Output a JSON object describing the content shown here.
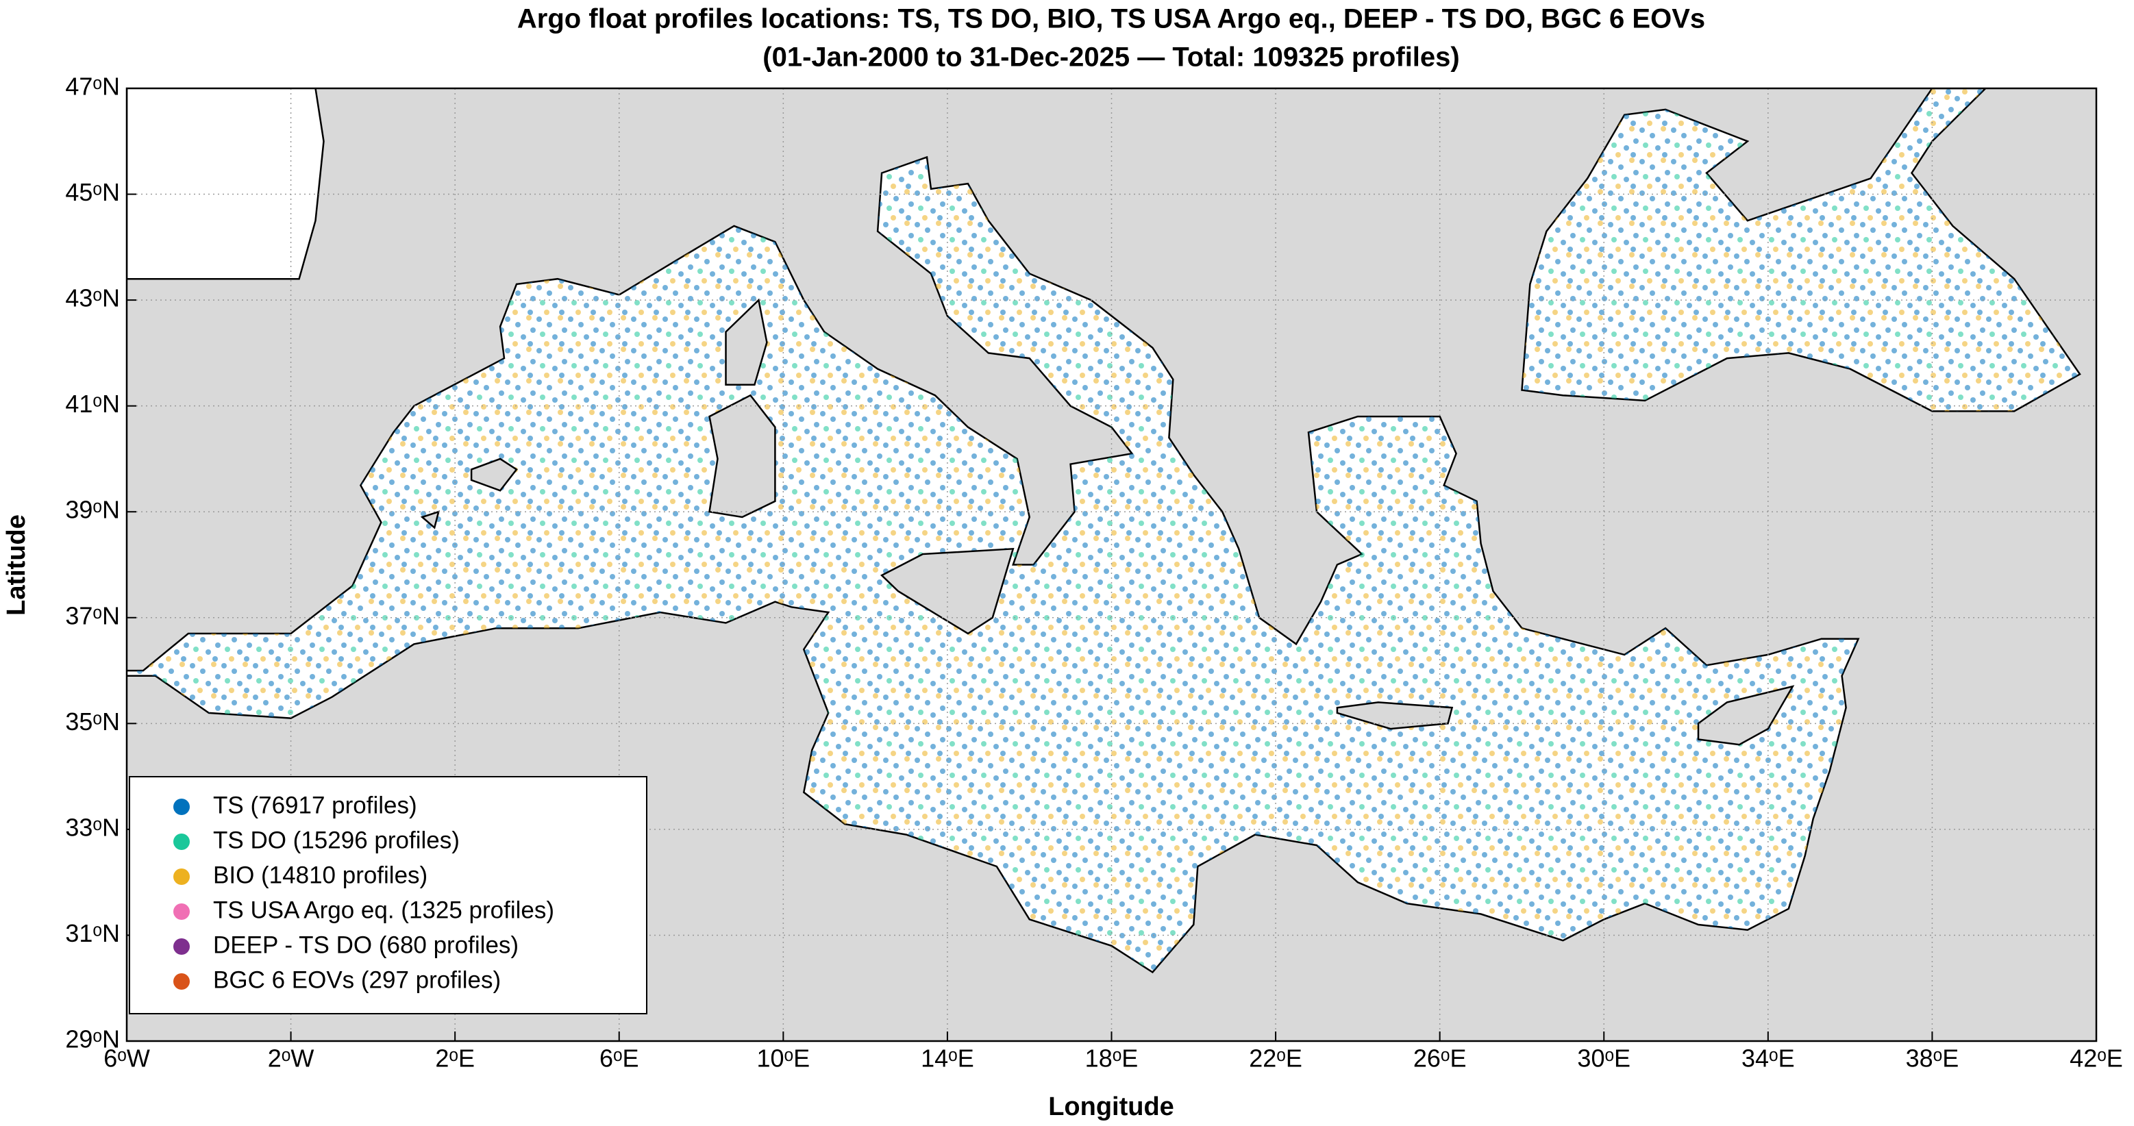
{
  "chart_data": {
    "type": "map",
    "title": "Argo float profiles locations: TS, TS DO, BIO, TS USA Argo eq., DEEP - TS DO, BGC 6 EOVs",
    "subtitle": "(01-Jan-2000 to 31-Dec-2025 — Total: 109325 profiles)",
    "x_label": "Longitude",
    "y_label": "Latitude",
    "xlim": [
      -6,
      42
    ],
    "ylim": [
      29,
      47
    ],
    "xticks": [
      {
        "value": -6,
        "label": "6ᵒW"
      },
      {
        "value": -2,
        "label": "2ᵒW"
      },
      {
        "value": 2,
        "label": "2ᵒE"
      },
      {
        "value": 6,
        "label": "6ᵒE"
      },
      {
        "value": 10,
        "label": "10ᵒE"
      },
      {
        "value": 14,
        "label": "14ᵒE"
      },
      {
        "value": 18,
        "label": "18ᵒE"
      },
      {
        "value": 22,
        "label": "22ᵒE"
      },
      {
        "value": 26,
        "label": "26ᵒE"
      },
      {
        "value": 30,
        "label": "30ᵒE"
      },
      {
        "value": 34,
        "label": "34ᵒE"
      },
      {
        "value": 38,
        "label": "38ᵒE"
      },
      {
        "value": 42,
        "label": "42ᵒE"
      }
    ],
    "yticks": [
      {
        "value": 29,
        "label": "29ᵒN"
      },
      {
        "value": 31,
        "label": "31ᵒN"
      },
      {
        "value": 33,
        "label": "33ᵒN"
      },
      {
        "value": 35,
        "label": "35ᵒN"
      },
      {
        "value": 37,
        "label": "37ᵒN"
      },
      {
        "value": 39,
        "label": "39ᵒN"
      },
      {
        "value": 41,
        "label": "41ᵒN"
      },
      {
        "value": 43,
        "label": "43ᵒN"
      },
      {
        "value": 45,
        "label": "45ᵒN"
      },
      {
        "value": 47,
        "label": "47ᵒN"
      }
    ],
    "grid": true,
    "legend": "lower left",
    "series": [
      {
        "name": "TS (76917 profiles)",
        "color": "#0072bd"
      },
      {
        "name": "TS DO (15296 profiles)",
        "color": "#1ac79a"
      },
      {
        "name": "BIO (14810 profiles)",
        "color": "#edb120"
      },
      {
        "name": "TS USA Argo eq. (1325 profiles)",
        "color": "#f06fb4"
      },
      {
        "name": "DEEP - TS DO (680 profiles)",
        "color": "#7e2f8e"
      },
      {
        "name": "BGC 6 EOVs (297 profiles)",
        "color": "#d95319"
      }
    ]
  }
}
